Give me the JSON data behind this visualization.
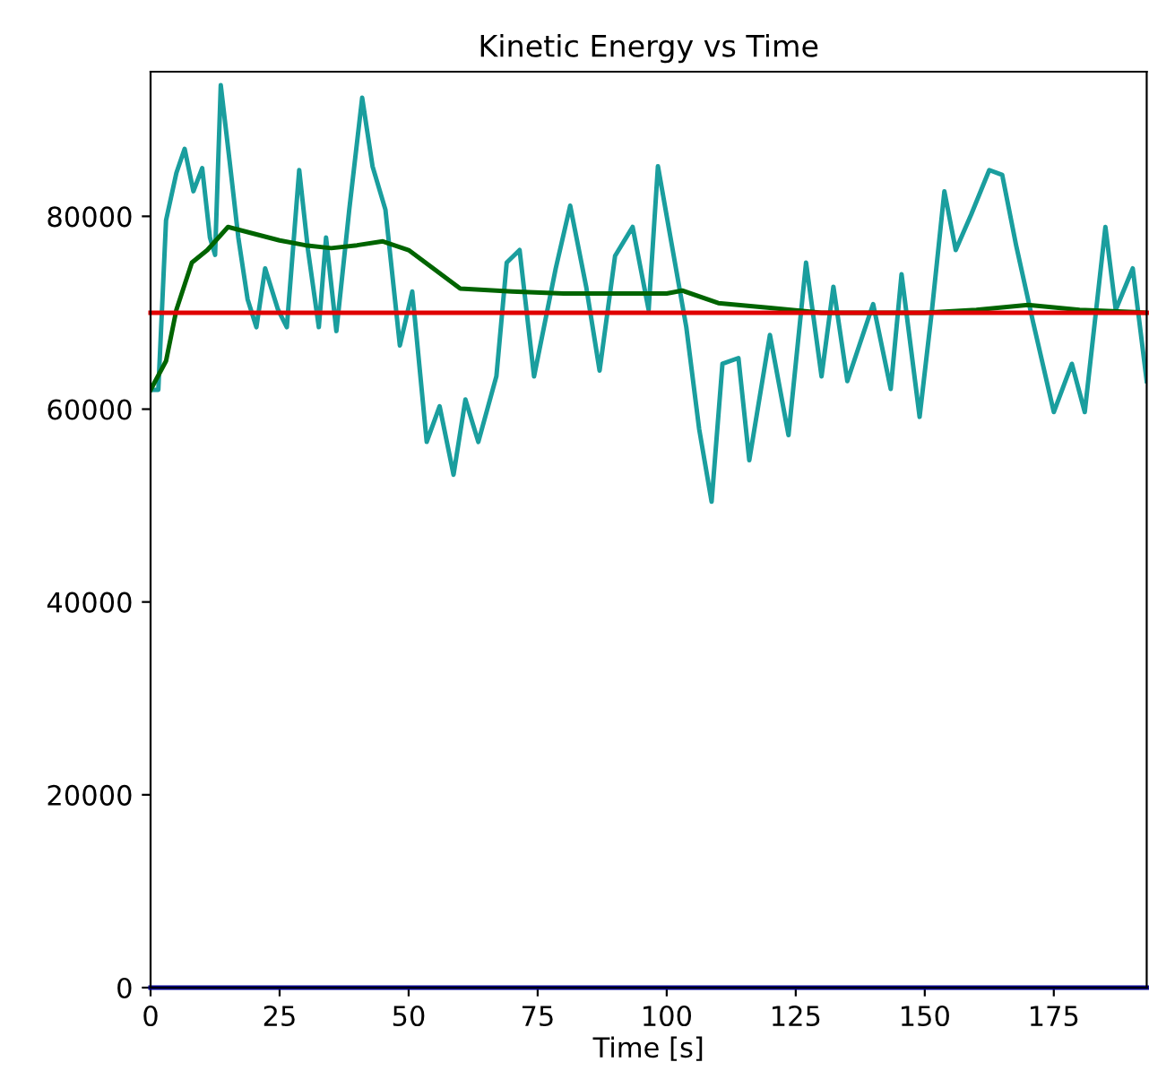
{
  "chart_data": {
    "type": "line",
    "title": "Kinetic Energy vs Time",
    "xlabel": "Time [s]",
    "series": [
      {
        "color": "#1a9e9e",
        "x": [
          0,
          1.5,
          3,
          5,
          6.6,
          8.3,
          10,
          11.5,
          12.5,
          13.6,
          15.3,
          17,
          18.8,
          20.5,
          22.2,
          24.7,
          26.4,
          28.8,
          30.5,
          32.6,
          34,
          36,
          38.5,
          41,
          43,
          45.5,
          48.3,
          50.7,
          53.5,
          56,
          58.7,
          61,
          63.5,
          67,
          69,
          71.5,
          74.3,
          78.5,
          81.3,
          84.4,
          87,
          90,
          93.4,
          96.5,
          98.3,
          101,
          103.8,
          106.3,
          108.7,
          110.8,
          113.9,
          116,
          120,
          123.6,
          127,
          130,
          132.3,
          135,
          140,
          143.4,
          145.5,
          149,
          151.4,
          153.8,
          156,
          159,
          162.5,
          165,
          167.7,
          171,
          175,
          178.5,
          181,
          185,
          187,
          190.3,
          193
        ],
        "values": [
          62000,
          62000,
          79600,
          84500,
          87000,
          82600,
          85000,
          77800,
          76000,
          93600,
          85800,
          77800,
          71400,
          68500,
          74600,
          70300,
          68500,
          84800,
          76500,
          68500,
          77800,
          68100,
          80700,
          92300,
          85200,
          80700,
          66600,
          72200,
          56600,
          60300,
          53200,
          61000,
          56600,
          63400,
          75200,
          76500,
          63400,
          74600,
          81100,
          72700,
          64000,
          75900,
          78900,
          70300,
          85200,
          77000,
          68500,
          57900,
          50400,
          64700,
          65300,
          54700,
          67700,
          57300,
          75200,
          63400,
          72700,
          62900,
          70900,
          62100,
          74000,
          59200,
          70300,
          82600,
          76500,
          80200,
          84800,
          84300,
          77000,
          69000,
          59700,
          64700,
          59700,
          78900,
          70300,
          74600,
          62900
        ]
      },
      {
        "color": "#006400",
        "x": [
          0,
          3,
          5,
          8,
          11,
          15,
          20,
          25,
          30,
          35,
          40,
          45,
          50,
          55,
          60,
          70,
          80,
          90,
          100,
          103,
          110,
          120,
          130,
          150,
          160,
          170,
          180,
          193
        ],
        "values": [
          62000,
          65000,
          70300,
          75200,
          76500,
          78900,
          78200,
          77500,
          77000,
          76700,
          77000,
          77400,
          76500,
          74500,
          72500,
          72200,
          72000,
          72000,
          72000,
          72300,
          71000,
          70500,
          70000,
          70000,
          70300,
          70800,
          70300,
          70000
        ]
      }
    ],
    "ref_lines": [
      {
        "axis": "y",
        "value": 70000,
        "color": "#e00000"
      },
      {
        "axis": "y",
        "value": 0,
        "color": "#00008b"
      }
    ],
    "xlim": [
      0,
      193
    ],
    "ylim": [
      0,
      95000
    ],
    "xticks": [
      0,
      25,
      50,
      75,
      100,
      125,
      150,
      175
    ],
    "yticks": [
      0,
      20000,
      40000,
      60000,
      80000
    ],
    "grid": false,
    "legend": false
  }
}
